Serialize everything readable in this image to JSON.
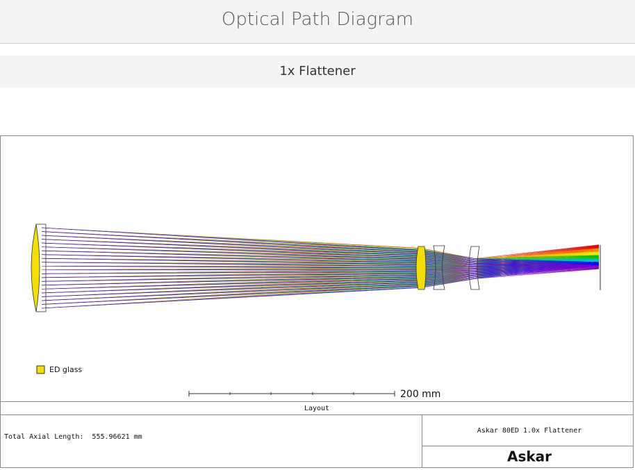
{
  "header": {
    "title": "Optical Path Diagram"
  },
  "subtitle": "1x Flattener",
  "diagram": {
    "legend": "ED glass",
    "scale_label": "200 mm",
    "caption": "Layout",
    "axial_length": "Total Axial Length:  555.96621 mm",
    "model": "Askar 80ED 1.0x Flattener",
    "brand": "Askar"
  }
}
